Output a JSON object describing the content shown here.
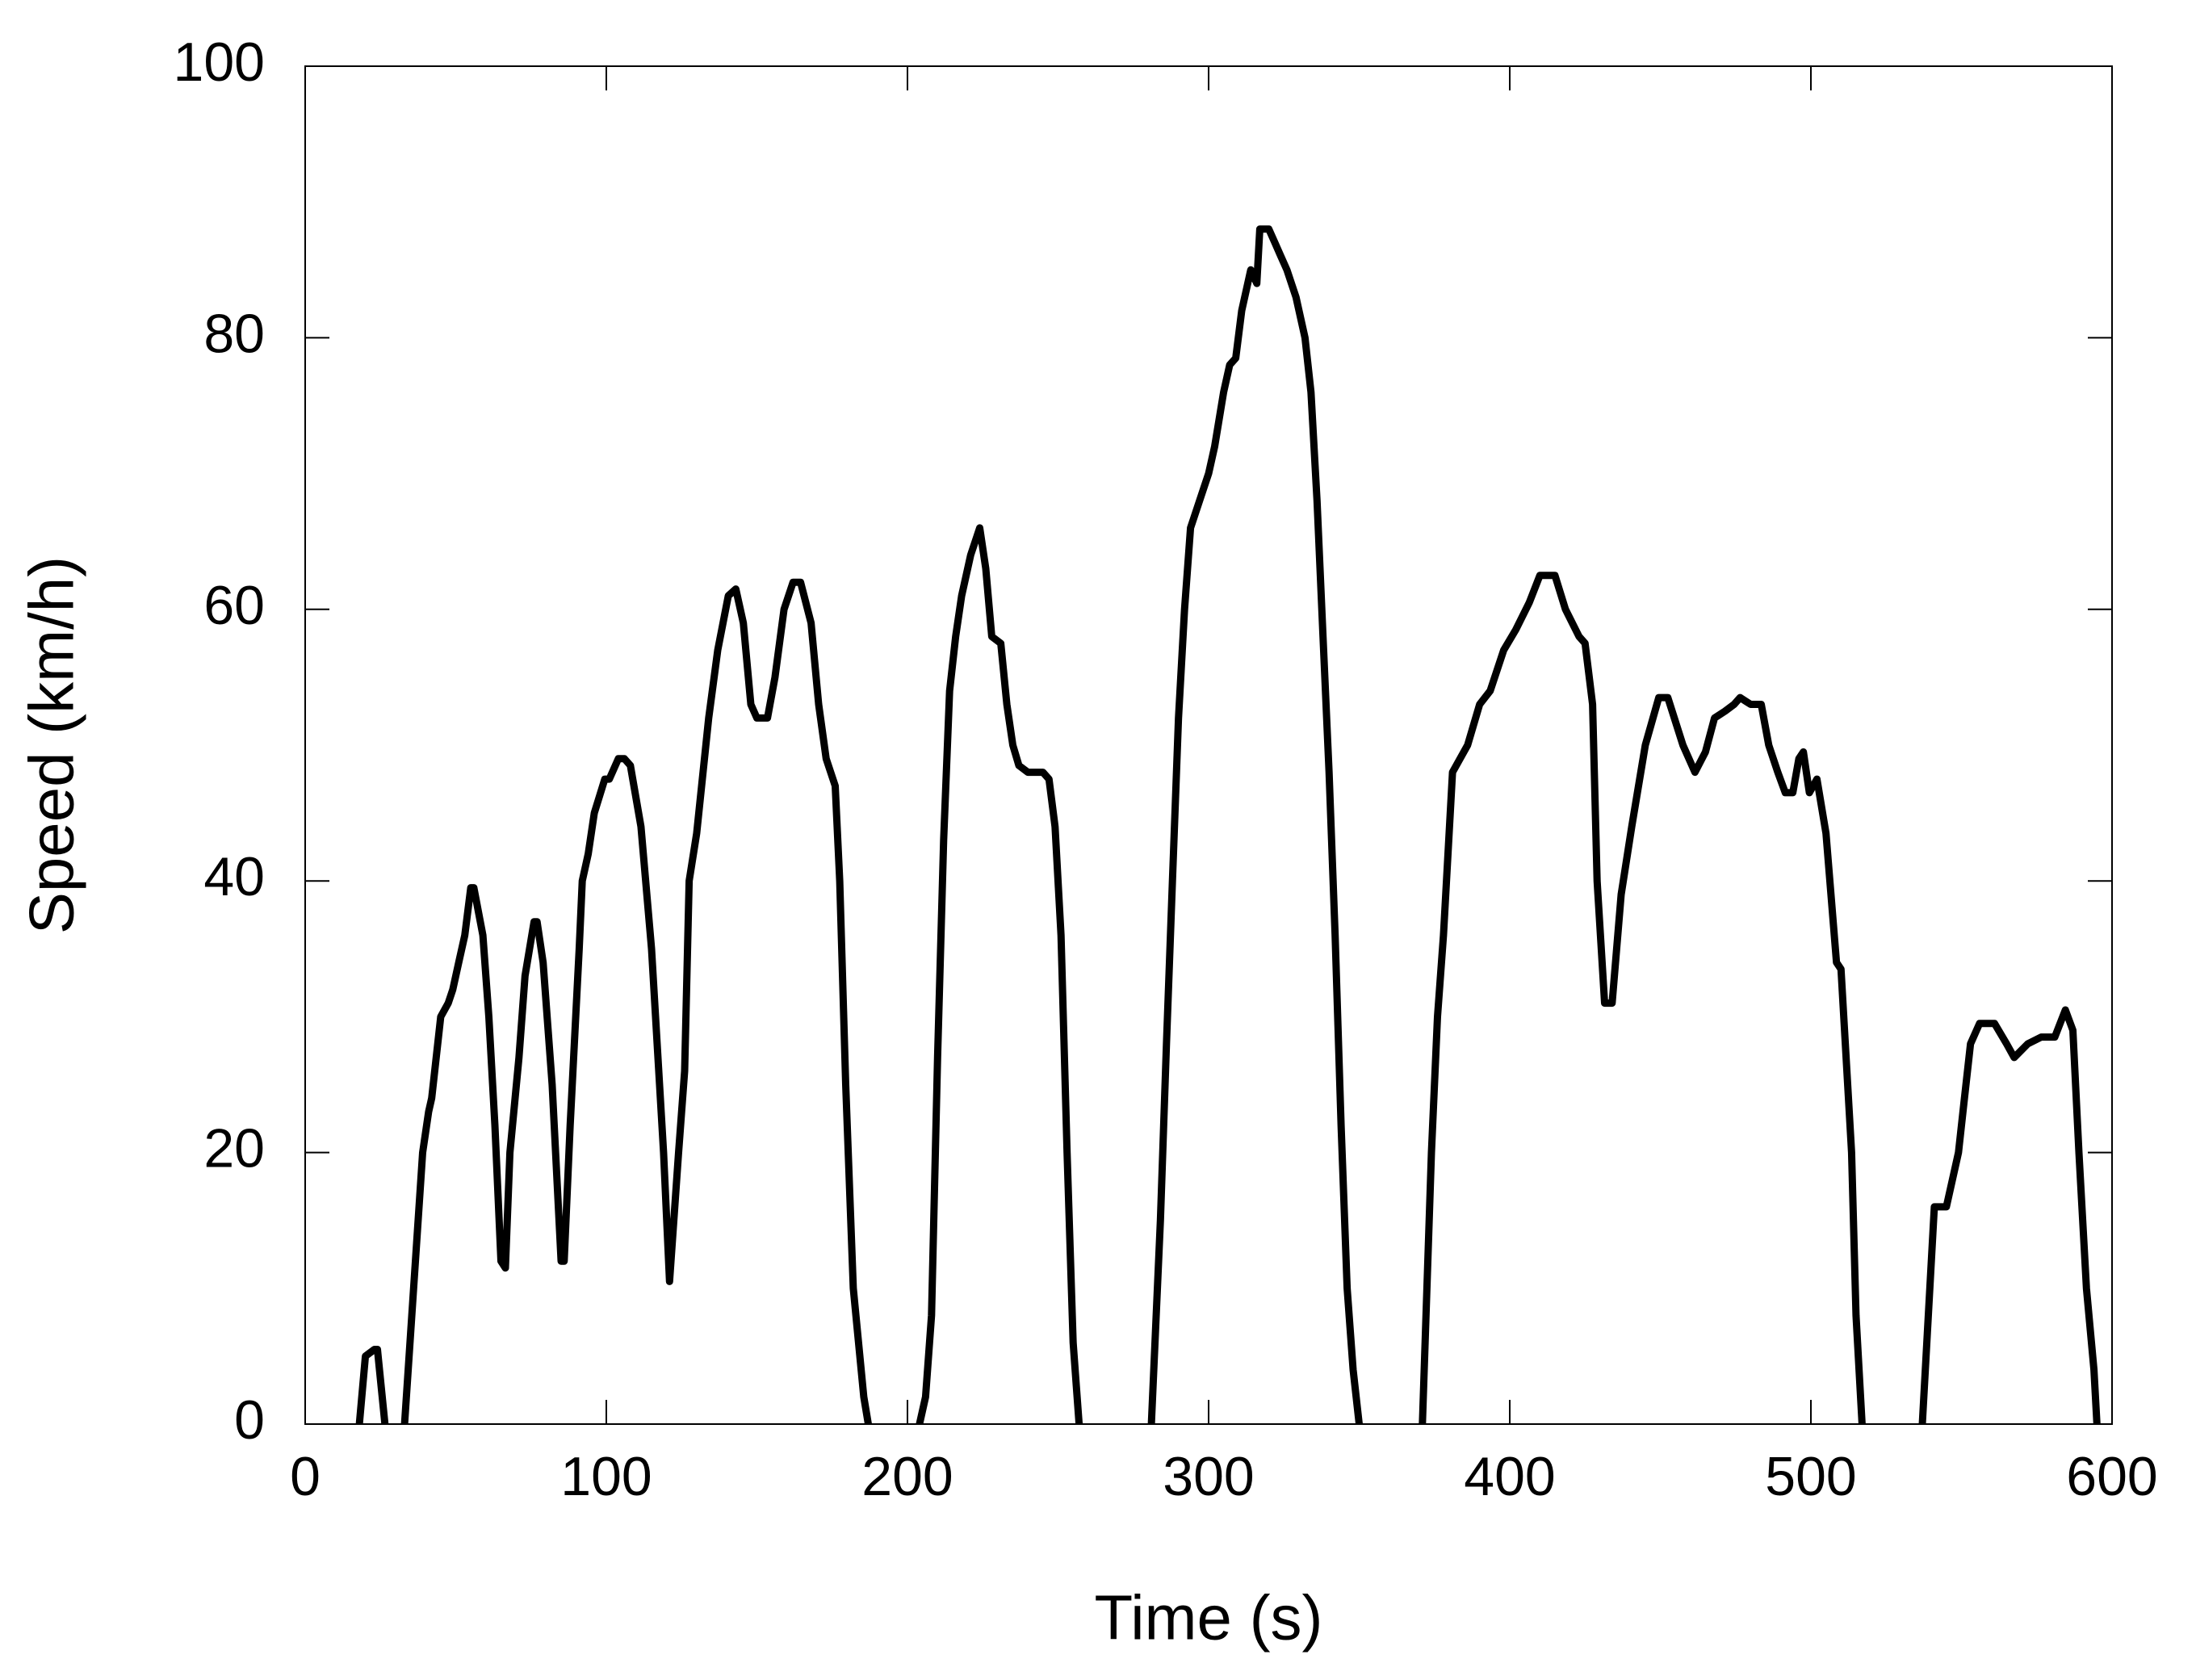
{
  "chart_data": {
    "type": "line",
    "xlabel": "Time (s)",
    "ylabel": "Speed (km/h)",
    "xlim": [
      0,
      600
    ],
    "xticks": [
      0,
      100,
      200,
      300,
      400,
      500,
      600
    ],
    "ylim": [
      0,
      100
    ],
    "yticks": [
      0,
      20,
      40,
      60,
      80,
      100
    ],
    "series": [
      {
        "color": "#000000",
        "x": [
          18,
          20,
          23,
          24,
          26.5,
          null,
          33,
          36,
          39,
          41,
          42,
          45,
          47.5,
          49,
          51,
          53,
          55,
          56,
          59,
          61,
          63,
          65,
          66.5,
          68,
          71,
          73,
          76,
          77,
          79,
          82,
          85,
          86,
          88,
          91,
          92,
          94,
          96,
          99.5,
          101,
          104,
          106,
          108,
          111.5,
          115,
          119,
          121,
          124,
          126,
          127.5,
          130,
          134,
          137,
          140.5,
          143,
          145.5,
          148,
          150,
          153.5,
          156,
          159,
          162,
          164.5,
          168,
          170.5,
          173,
          176,
          177.5,
          179.5,
          182,
          185.5,
          187,
          null,
          204,
          206,
          208,
          210,
          212,
          214,
          216,
          218,
          221,
          224,
          226,
          228,
          231,
          233,
          235,
          237,
          240,
          245,
          247,
          249,
          251,
          253,
          255,
          257,
          null,
          281,
          284,
          286,
          288,
          290,
          292,
          294,
          297,
          300,
          302,
          305,
          307,
          309,
          311,
          314,
          316,
          317,
          320,
          322,
          324,
          326,
          329,
          332,
          334,
          336,
          338,
          340,
          342,
          344,
          346,
          348,
          350,
          null,
          371,
          374,
          376,
          378,
          381,
          386,
          390,
          393.5,
          398,
          402,
          406.5,
          410,
          415,
          418.5,
          423,
          425,
          427.5,
          429,
          431.5,
          434,
          437,
          440.5,
          445,
          449.5,
          452.5,
          457.5,
          461.5,
          465,
          468,
          471.5,
          474.5,
          476.5,
          480,
          483.5,
          486,
          489,
          491.5,
          494,
          496,
          497.5,
          499.5,
          502,
          505,
          508.5,
          510,
          513.5,
          515,
          517,
          null,
          537,
          541,
          545,
          549,
          551,
          553,
          556,
          561,
          565,
          567.5,
          572,
          576.5,
          581,
          584.5,
          587,
          589,
          591.5,
          594,
          595
        ],
        "values": [
          0,
          5,
          5.5,
          5.5,
          0,
          null,
          0,
          10,
          20,
          23,
          24,
          30,
          31,
          32,
          34,
          36,
          39.5,
          39.5,
          36,
          30,
          22,
          12,
          11.5,
          20,
          27,
          33,
          37,
          37,
          34,
          25,
          12,
          12,
          22,
          35,
          40,
          42,
          45,
          47.5,
          47.5,
          49,
          49,
          48.5,
          44,
          35,
          20,
          10.5,
          20,
          26,
          40,
          43.5,
          52,
          57,
          61,
          61.5,
          59,
          53,
          52,
          52,
          55,
          60,
          62,
          62,
          59,
          53,
          49,
          47,
          40,
          25,
          10,
          2,
          0,
          null,
          0,
          2,
          8,
          27,
          43,
          54,
          58,
          61,
          64,
          66,
          63,
          58,
          57.5,
          53,
          50,
          48.5,
          48,
          48,
          47.5,
          44,
          36,
          20,
          6,
          0,
          null,
          0,
          15,
          28,
          40,
          52,
          60,
          66,
          68,
          70,
          72,
          76,
          78,
          78.5,
          82,
          85,
          84,
          88,
          88,
          87,
          86,
          85,
          83,
          80,
          76,
          68,
          58,
          48,
          36,
          22,
          10,
          4,
          0,
          null,
          0,
          20,
          30,
          36,
          48,
          50,
          53,
          54,
          57,
          58.5,
          60.5,
          62.5,
          62.5,
          60,
          58,
          57.5,
          53,
          40,
          31,
          31,
          39,
          44,
          50,
          53.5,
          53.5,
          50,
          48,
          49.5,
          52,
          52.5,
          53,
          53.5,
          53,
          53,
          50,
          48,
          46.5,
          46.5,
          49,
          49.5,
          46.5,
          47.5,
          43.5,
          34,
          33.5,
          20,
          8,
          0,
          null,
          0,
          16,
          16,
          20,
          24,
          28,
          29.5,
          29.5,
          28,
          27,
          28,
          28.5,
          28.5,
          30.5,
          29,
          20,
          10,
          4,
          0
        ]
      }
    ]
  }
}
